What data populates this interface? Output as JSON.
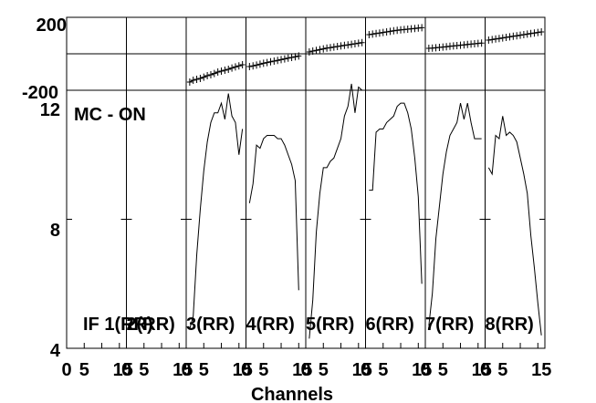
{
  "chart_data": {
    "type": "line",
    "xlabel": "Channels",
    "annotation": "MC - ON",
    "x_tick_labels": [
      "0",
      "5",
      "15"
    ],
    "x_range": [
      0,
      17
    ],
    "panels": [
      {
        "label": "IF 1(RR)",
        "x": [],
        "amp": [],
        "phase": []
      },
      {
        "label": "2(RR)",
        "x": [],
        "amp": [],
        "phase": []
      },
      {
        "label": "3(RR)",
        "x": [
          1,
          2,
          3,
          4,
          5,
          6,
          7,
          8,
          9,
          10,
          11,
          12,
          13,
          14,
          15,
          16
        ],
        "amp": [
          4.6,
          5.0,
          6.9,
          8.3,
          9.5,
          10.4,
          11.0,
          11.3,
          11.3,
          11.6,
          11.1,
          11.9,
          11.2,
          11.0,
          10.0,
          10.8
        ],
        "phase": [
          -155,
          -145,
          -140,
          -135,
          -128,
          -120,
          -115,
          -108,
          -100,
          -95,
          -90,
          -85,
          -78,
          -72,
          -66,
          -60
        ]
      },
      {
        "label": "4(RR)",
        "x": [
          1,
          2,
          3,
          4,
          5,
          6,
          7,
          8,
          9,
          10,
          11,
          12,
          13,
          14,
          15
        ],
        "amp": [
          8.5,
          9.1,
          10.3,
          10.2,
          10.5,
          10.6,
          10.6,
          10.6,
          10.5,
          10.5,
          10.3,
          10.0,
          9.7,
          9.2,
          5.8
        ],
        "phase": [
          -70,
          -66,
          -62,
          -57,
          -52,
          -48,
          -44,
          -40,
          -36,
          -32,
          -28,
          -24,
          -20,
          -16,
          -12
        ]
      },
      {
        "label": "5(RR)",
        "x": [
          1,
          2,
          3,
          4,
          5,
          6,
          7,
          8,
          9,
          10,
          11,
          12,
          13,
          14,
          15,
          16
        ],
        "amp": [
          4.3,
          5.5,
          7.6,
          8.8,
          9.6,
          9.6,
          9.8,
          9.9,
          10.2,
          10.5,
          11.2,
          11.5,
          12.2,
          11.3,
          12.1,
          12.0
        ],
        "phase": [
          10,
          15,
          19,
          23,
          27,
          31,
          34,
          37,
          40,
          43,
          46,
          49,
          52,
          55,
          58,
          61
        ]
      },
      {
        "label": "6(RR)",
        "x": [
          1,
          2,
          3,
          4,
          5,
          6,
          7,
          8,
          9,
          10,
          11,
          12,
          13,
          14,
          15,
          16
        ],
        "amp": [
          8.9,
          8.9,
          10.7,
          10.8,
          10.8,
          11.0,
          11.1,
          11.2,
          11.5,
          11.6,
          11.6,
          11.3,
          10.8,
          9.9,
          8.7,
          6.0
        ],
        "phase": [
          105,
          108,
          111,
          114,
          117,
          120,
          123,
          126,
          129,
          131,
          133,
          135,
          137,
          139,
          141,
          143
        ]
      },
      {
        "label": "7(RR)",
        "x": [
          1,
          2,
          3,
          4,
          5,
          6,
          7,
          8,
          9,
          10,
          11,
          12,
          13,
          14,
          15,
          16
        ],
        "amp": [
          4.7,
          5.7,
          7.4,
          8.4,
          9.4,
          10.1,
          10.6,
          10.8,
          11.0,
          11.6,
          11.1,
          11.6,
          11.0,
          10.5,
          10.5,
          10.5
        ],
        "phase": [
          30,
          31,
          33,
          35,
          37,
          39,
          41,
          43,
          45,
          47,
          49,
          51,
          53,
          55,
          57,
          59
        ]
      },
      {
        "label": "8(RR)",
        "x": [
          1,
          2,
          3,
          4,
          5,
          6,
          7,
          8,
          9,
          10,
          11,
          12,
          13,
          14,
          15,
          16
        ],
        "amp": [
          9.6,
          9.4,
          10.6,
          10.5,
          11.2,
          10.6,
          10.7,
          10.6,
          10.4,
          9.9,
          9.4,
          8.8,
          7.5,
          6.5,
          5.4,
          4.4
        ],
        "phase": [
          75,
          78,
          81,
          84,
          87,
          90,
          93,
          96,
          99,
          102,
          105,
          108,
          111,
          114,
          117,
          120
        ]
      }
    ],
    "amplitude_axis": {
      "range": [
        4,
        12
      ],
      "ticks": [
        4,
        8,
        12
      ],
      "tick_labels": [
        "4",
        "8",
        "12"
      ]
    },
    "phase_axis": {
      "range": [
        -200,
        200
      ],
      "tick_labels": [
        "200",
        "-200"
      ]
    }
  }
}
